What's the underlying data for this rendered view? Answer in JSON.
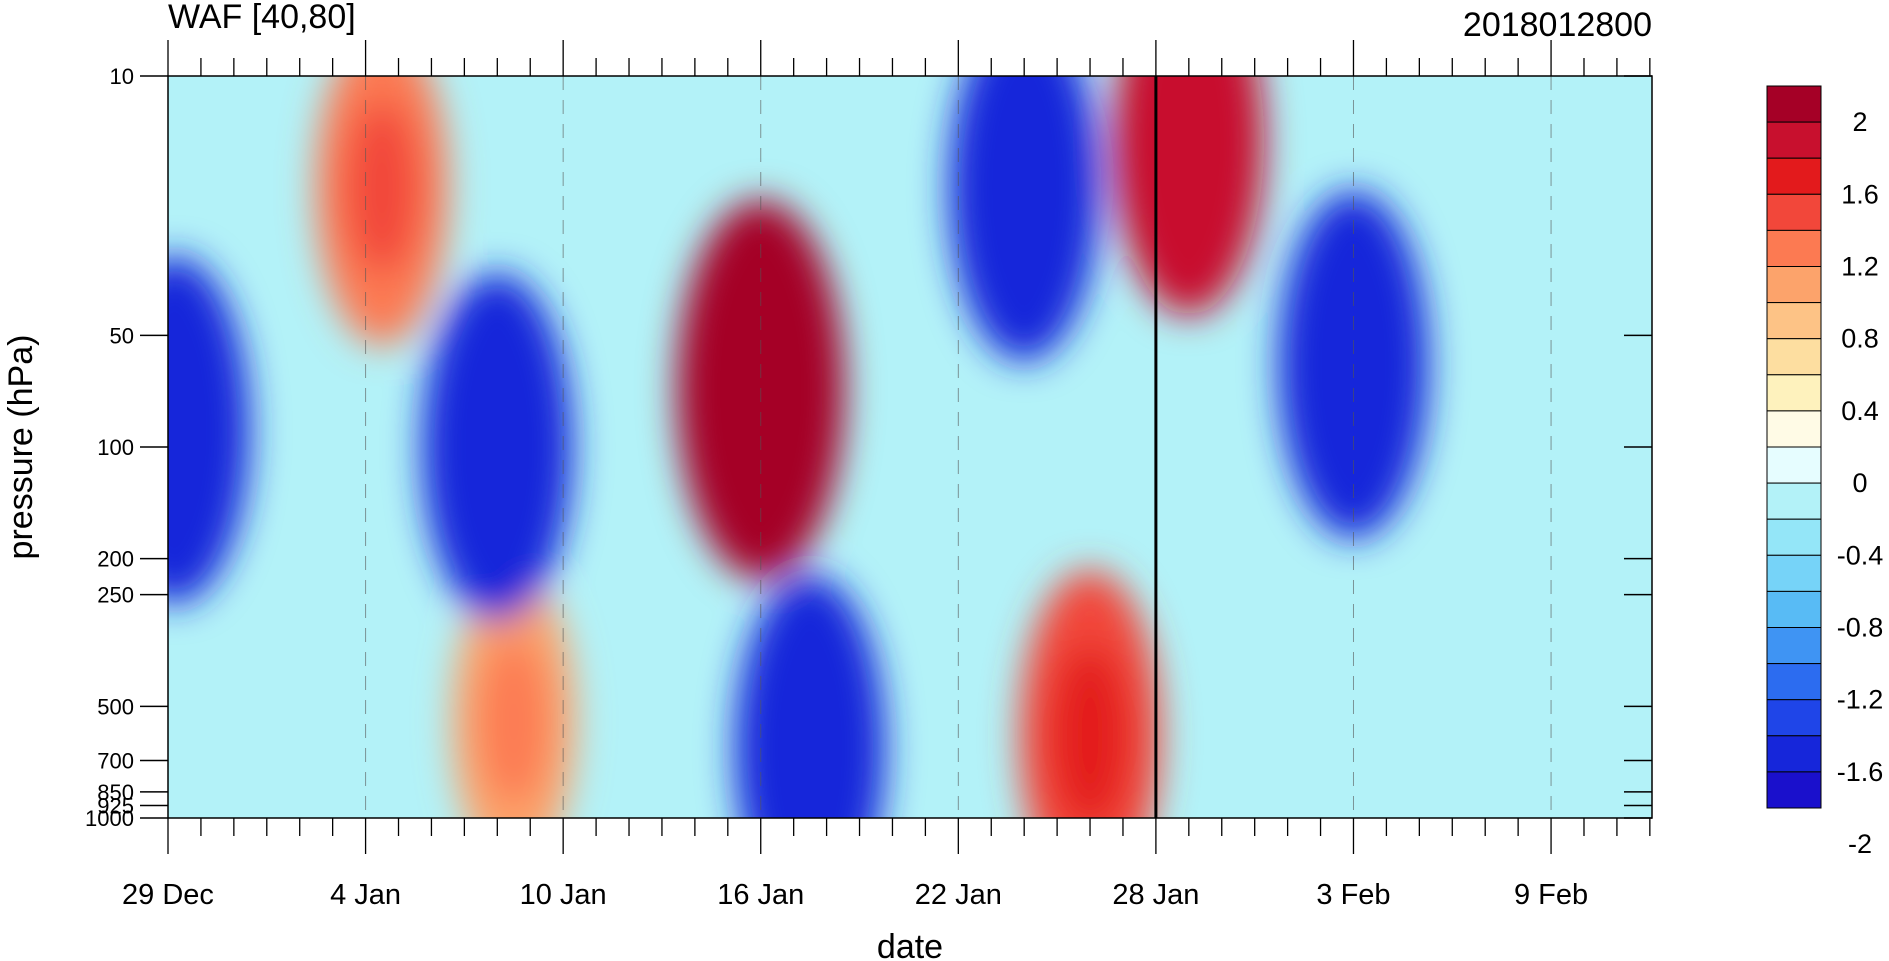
{
  "chart_data": {
    "type": "heatmap",
    "title": "WAF [40,80]",
    "run_label": "2018012800",
    "xlabel": "date",
    "ylabel": "pressure (hPa)",
    "x_tick_labels": [
      "29 Dec",
      "4 Jan",
      "10 Jan",
      "16 Jan",
      "22 Jan",
      "28 Jan",
      "3 Feb",
      "9 Feb"
    ],
    "x_day_offsets": [
      0,
      6,
      12,
      18,
      24,
      30,
      36,
      42
    ],
    "x_days_total": 45,
    "y_levels": [
      10,
      50,
      100,
      200,
      250,
      500,
      700,
      850,
      925,
      1000
    ],
    "y_tick_labels": [
      "10",
      "50",
      "100",
      "200",
      "250",
      "500",
      "700",
      "850",
      "925",
      "1000"
    ],
    "y_scale": "log",
    "y_inverted": true,
    "forecast_start": "28 Jan",
    "colorbar": {
      "labels": [
        "2",
        "1.6",
        "1.2",
        "0.8",
        "0.4",
        "0",
        "-0.4",
        "-0.8",
        "-1.2",
        "-1.6",
        "-2"
      ],
      "colors": [
        "#a50026",
        "#c8102e",
        "#e31a1c",
        "#f2473a",
        "#fc7a52",
        "#fca36b",
        "#fdc386",
        "#fddea0",
        "#fef2bd",
        "#fffbe6",
        "#e6fdff",
        "#b3f2f8",
        "#94e6f8",
        "#76d3f8",
        "#58bbf5",
        "#3f94f3",
        "#2c6cf0",
        "#1f45e8",
        "#1626da",
        "#1a10cc"
      ],
      "min": -2.0,
      "max": 2.0,
      "step": 0.2
    },
    "features": [
      {
        "name": "strong positive anomaly 16 Jan",
        "day": 18,
        "pressure": 70,
        "value": 2.0
      },
      {
        "name": "positive anomaly 28 Jan upper",
        "day": 31,
        "pressure": 15,
        "value": 1.6
      },
      {
        "name": "positive anomaly 4 Jan upper",
        "day": 6.5,
        "pressure": 20,
        "value": 1.2
      },
      {
        "name": "positive anomaly 26 Jan lower",
        "day": 28,
        "pressure": 600,
        "value": 1.4
      },
      {
        "name": "positive anomaly 7 Jan lower",
        "day": 10.5,
        "pressure": 550,
        "value": 1.0
      },
      {
        "name": "negative anomaly 24 Jan upper",
        "day": 26,
        "pressure": 20,
        "value": -1.6
      },
      {
        "name": "negative anomaly 8 Jan",
        "day": 10,
        "pressure": 100,
        "value": -1.6
      },
      {
        "name": "negative anomaly 29 Dec",
        "day": 0.2,
        "pressure": 90,
        "value": -1.6
      },
      {
        "name": "negative anomaly 17 Jan lower",
        "day": 19.5,
        "pressure": 650,
        "value": -1.6
      },
      {
        "name": "negative anomaly 2 Feb",
        "day": 36,
        "pressure": 60,
        "value": -1.6
      }
    ]
  }
}
